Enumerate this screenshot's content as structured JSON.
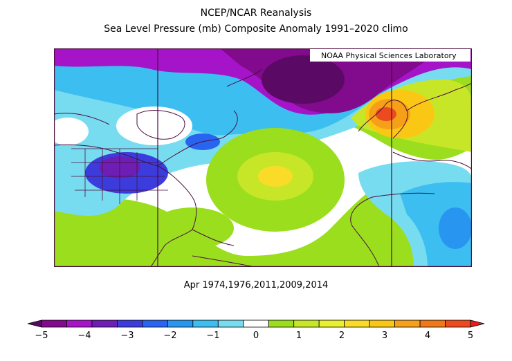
{
  "title": {
    "line1": "NCEP/NCAR Reanalysis",
    "line2": "Sea Level Pressure (mb) Composite Anomaly 1991–2020 climo"
  },
  "map": {
    "credit": "NOAA Physical Sciences Laboratory",
    "region": "North Atlantic",
    "frame_color": "#4a0e3c"
  },
  "subtitle": "Apr 1974,1976,2011,2009,2014",
  "colorbar": {
    "colors": [
      "#5a0a64",
      "#820a8c",
      "#a514c8",
      "#6e1eb4",
      "#3c3cdc",
      "#2864f0",
      "#2896f0",
      "#3cbef0",
      "#78dcf0",
      "#ffffff",
      "#9ade1e",
      "#c8e628",
      "#eaf030",
      "#fadc28",
      "#fac814",
      "#f5a018",
      "#f07818",
      "#eb4b1e",
      "#e61e1e"
    ],
    "tick_labels": [
      "−5",
      "−4",
      "−3",
      "−2",
      "−1",
      "0",
      "1",
      "2",
      "3",
      "4",
      "5"
    ]
  }
}
